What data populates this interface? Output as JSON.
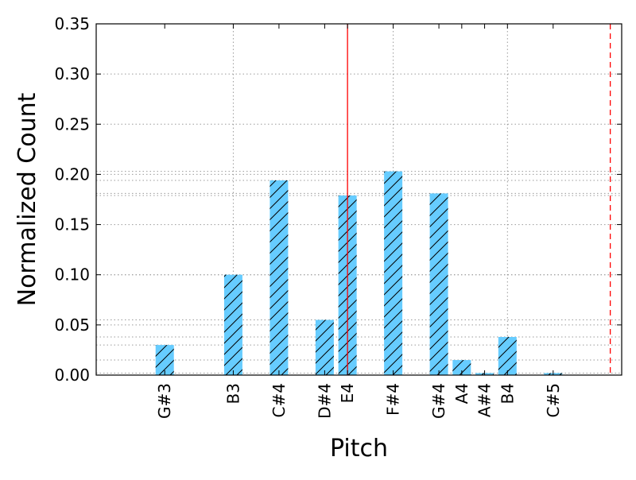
{
  "chart_data": {
    "type": "bar",
    "xlabel": "Pitch",
    "ylabel": "Normalized Count",
    "ylim": [
      0,
      0.35
    ],
    "yticks": [
      0.0,
      0.05,
      0.1,
      0.15,
      0.2,
      0.25,
      0.3,
      0.35
    ],
    "ytick_labels": [
      "0.00",
      "0.05",
      "0.10",
      "0.15",
      "0.20",
      "0.25",
      "0.30",
      "0.35"
    ],
    "x_semitone_range": [
      0,
      23
    ],
    "categories": [
      "G#3",
      "B3",
      "C#4",
      "D#4",
      "E4",
      "F#4",
      "G#4",
      "A4",
      "A#4",
      "B4",
      "C#5"
    ],
    "semitones": [
      3,
      6,
      8,
      10,
      11,
      13,
      15,
      16,
      17,
      18,
      20
    ],
    "values": [
      0.03,
      0.1,
      0.194,
      0.055,
      0.179,
      0.203,
      0.181,
      0.015,
      0.002,
      0.038,
      0.002
    ],
    "bar_color": "#66ccff",
    "bar_hatch": "/",
    "vertical_grid_semitones": [
      6,
      13,
      18
    ],
    "vertical_lines": [
      {
        "semitone": 11,
        "style": "solid",
        "color": "#ff0000"
      },
      {
        "semitone": 22.5,
        "style": "dashed",
        "color": "#ff0000"
      }
    ],
    "grid": true
  }
}
